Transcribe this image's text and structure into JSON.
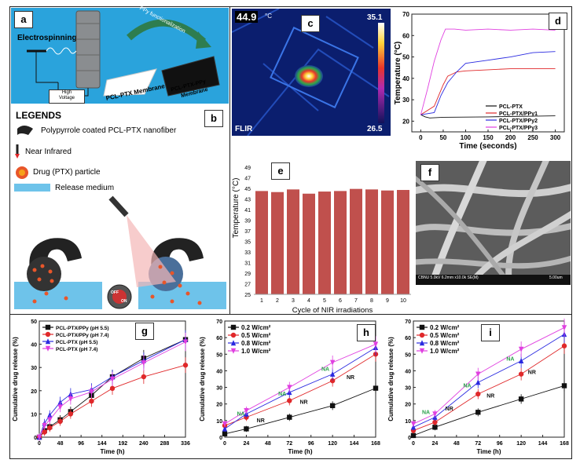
{
  "panel_labels": {
    "a": "a",
    "b": "b",
    "c": "c",
    "d": "d",
    "e": "e",
    "f": "f",
    "g": "g",
    "h": "h",
    "i": "i"
  },
  "schematic": {
    "electrospinning": "Electrospinning",
    "ppy_func": "PPy functionalization",
    "membrane1": "PCL-PTX Membrane",
    "membrane2a": "PCL-PTX-PPy",
    "membrane2b": "Membrane",
    "high": "High",
    "voltage": "Voltage"
  },
  "legends": {
    "title": "LEGENDS",
    "items": [
      "Polypyrrole coated PCL-PTX nanofiber",
      "Near Infrared",
      "Drug (PTX) particle",
      "Release medium"
    ]
  },
  "thermal": {
    "temp": "44.9",
    "unit": "°C",
    "max": "35.1",
    "min": "26.5",
    "brand": "FLIR",
    "off": "OFF",
    "on": "ON"
  },
  "sem": {
    "caption": "CBNU 5.0kV 6.2mm x10.0k SE(M)",
    "scale": "5.00um"
  },
  "colors": {
    "bar": "#c0504d",
    "black": "#111111",
    "red": "#e0282a",
    "blue": "#2a2ae0",
    "magenta": "#e040e0"
  },
  "chart_data": [
    {
      "id": "d",
      "type": "line",
      "title": "",
      "xlabel": "Time (seconds)",
      "ylabel": "Temperature (°C)",
      "xlim": [
        -20,
        320
      ],
      "ylim": [
        15,
        70
      ],
      "xticks": [
        0,
        50,
        100,
        150,
        200,
        250,
        300
      ],
      "yticks": [
        20,
        30,
        40,
        50,
        60,
        70
      ],
      "series": [
        {
          "name": "PCL-PTX",
          "color": "#111111",
          "points": [
            [
              0,
              23
            ],
            [
              10,
              22
            ],
            [
              20,
              21.5
            ],
            [
              50,
              21.8
            ],
            [
              100,
              21.9
            ],
            [
              150,
              22
            ],
            [
              200,
              22.2
            ],
            [
              250,
              22.3
            ],
            [
              300,
              22.5
            ]
          ]
        },
        {
          "name": "PCL-PTX/PPy1",
          "color": "#e0282a",
          "points": [
            [
              0,
              23
            ],
            [
              30,
              27
            ],
            [
              50,
              37
            ],
            [
              60,
              41
            ],
            [
              80,
              43
            ],
            [
              100,
              43.5
            ],
            [
              150,
              44
            ],
            [
              200,
              44.5
            ],
            [
              250,
              44.5
            ],
            [
              300,
              44.5
            ]
          ]
        },
        {
          "name": "PCL-PTX/PPy2",
          "color": "#2a2ae0",
          "points": [
            [
              0,
              23
            ],
            [
              30,
              24
            ],
            [
              45,
              32
            ],
            [
              60,
              38
            ],
            [
              80,
              43
            ],
            [
              100,
              47
            ],
            [
              150,
              48.5
            ],
            [
              200,
              50
            ],
            [
              250,
              52
            ],
            [
              300,
              52.5
            ]
          ]
        },
        {
          "name": "PCL-PTX/PPy3",
          "color": "#e040e0",
          "points": [
            [
              0,
              23
            ],
            [
              15,
              35
            ],
            [
              30,
              48
            ],
            [
              45,
              58
            ],
            [
              55,
              63
            ],
            [
              75,
              63
            ],
            [
              100,
              62.5
            ],
            [
              150,
              63
            ],
            [
              200,
              62.5
            ],
            [
              250,
              63
            ],
            [
              300,
              62.5
            ]
          ]
        }
      ]
    },
    {
      "id": "e",
      "type": "bar",
      "title": "",
      "xlabel": "Cycle of NIR irradiations",
      "ylabel": "Temperature (°C)",
      "ylim": [
        25,
        49
      ],
      "yticks": [
        25,
        27,
        29,
        31,
        33,
        35,
        37,
        39,
        41,
        43,
        45,
        47,
        49
      ],
      "categories": [
        "1",
        "2",
        "3",
        "4",
        "5",
        "6",
        "7",
        "8",
        "9",
        "10"
      ],
      "values": [
        44.5,
        44.3,
        44.8,
        44.0,
        44.4,
        44.5,
        44.9,
        44.8,
        44.6,
        44.7
      ]
    },
    {
      "id": "g",
      "type": "line",
      "title": "",
      "xlabel": "Time (h)",
      "ylabel": "Cumulative drug release (%)",
      "xlim": [
        0,
        336
      ],
      "ylim": [
        0,
        50
      ],
      "xticks": [
        0,
        48,
        96,
        144,
        192,
        240,
        288,
        336
      ],
      "yticks": [
        0,
        10,
        20,
        30,
        40,
        50
      ],
      "series": [
        {
          "name": "PCL-PTX/PPy (pH 5.5)",
          "color": "#111111",
          "marker": "square",
          "x": [
            0,
            12,
            24,
            48,
            72,
            120,
            168,
            240,
            336
          ],
          "y": [
            0,
            2.8,
            4.5,
            7.5,
            11,
            18,
            26,
            34,
            42
          ]
        },
        {
          "name": "PCL-PTX/PPy (pH 7.4)",
          "color": "#e0282a",
          "marker": "circle",
          "x": [
            0,
            12,
            24,
            48,
            72,
            120,
            168,
            240,
            336
          ],
          "y": [
            0,
            2.2,
            4,
            6.8,
            10,
            15.5,
            21,
            26,
            31
          ]
        },
        {
          "name": "PCL-PTX (pH 5.5)",
          "color": "#2a2ae0",
          "marker": "triangle",
          "x": [
            0,
            12,
            24,
            48,
            72,
            120,
            168,
            240,
            336
          ],
          "y": [
            0,
            6,
            9.5,
            15,
            18.5,
            20.5,
            26,
            33,
            42
          ]
        },
        {
          "name": "PCL-PTX (pH 7.4)",
          "color": "#e040e0",
          "marker": "tri-down",
          "x": [
            0,
            12,
            24,
            48,
            72,
            120,
            168,
            240,
            336
          ],
          "y": [
            0,
            5,
            7.5,
            13,
            16.5,
            19.5,
            25,
            32,
            41
          ]
        }
      ]
    },
    {
      "id": "h",
      "type": "line",
      "title": "",
      "xlabel": "Time (h)",
      "ylabel": "Cumulative drug release (%)",
      "xlim": [
        0,
        168
      ],
      "ylim": [
        0,
        70
      ],
      "xticks": [
        0,
        24,
        48,
        72,
        96,
        120,
        144,
        168
      ],
      "yticks": [
        0,
        10,
        20,
        30,
        40,
        50,
        60,
        70
      ],
      "annotations": {
        "NA": "NA",
        "NR": "NR"
      },
      "series": [
        {
          "name": "0.2 W/cm²",
          "color": "#111111",
          "marker": "square",
          "x": [
            0,
            24,
            72,
            120,
            168
          ],
          "y": [
            2,
            5,
            12,
            19,
            29.5
          ]
        },
        {
          "name": "0.5 W/cm²",
          "color": "#e0282a",
          "marker": "circle",
          "x": [
            0,
            24,
            72,
            120,
            168
          ],
          "y": [
            7,
            12,
            22,
            34,
            50
          ]
        },
        {
          "name": "0.8 W/cm²",
          "color": "#2a2ae0",
          "marker": "triangle",
          "x": [
            0,
            24,
            72,
            120,
            168
          ],
          "y": [
            5,
            14,
            27,
            38,
            54
          ]
        },
        {
          "name": "1.0 W/cm²",
          "color": "#e040e0",
          "marker": "tri-down",
          "x": [
            0,
            24,
            72,
            120,
            168
          ],
          "y": [
            8,
            16,
            30,
            45,
            56
          ]
        }
      ]
    },
    {
      "id": "i",
      "type": "line",
      "title": "",
      "xlabel": "Time (h)",
      "ylabel": "Cumulative drug release (%)",
      "xlim": [
        0,
        168
      ],
      "ylim": [
        0,
        70
      ],
      "xticks": [
        0,
        24,
        48,
        72,
        96,
        120,
        144,
        168
      ],
      "yticks": [
        0,
        10,
        20,
        30,
        40,
        50,
        60,
        70
      ],
      "annotations": {
        "NA": "NA",
        "NR": "NR"
      },
      "series": [
        {
          "name": "0.2 W/cm²",
          "color": "#111111",
          "marker": "square",
          "x": [
            0,
            24,
            72,
            120,
            168
          ],
          "y": [
            1,
            6,
            15,
            23,
            31
          ]
        },
        {
          "name": "0.5 W/cm²",
          "color": "#e0282a",
          "marker": "circle",
          "x": [
            0,
            24,
            72,
            120,
            168
          ],
          "y": [
            4,
            9,
            26,
            38,
            55
          ]
        },
        {
          "name": "0.8 W/cm²",
          "color": "#2a2ae0",
          "marker": "triangle",
          "x": [
            0,
            24,
            72,
            120,
            168
          ],
          "y": [
            6,
            12,
            33,
            46,
            62
          ]
        },
        {
          "name": "1.0 W/cm²",
          "color": "#e040e0",
          "marker": "tri-down",
          "x": [
            0,
            24,
            72,
            120,
            168
          ],
          "y": [
            8,
            14,
            38,
            53,
            66
          ]
        }
      ]
    }
  ]
}
